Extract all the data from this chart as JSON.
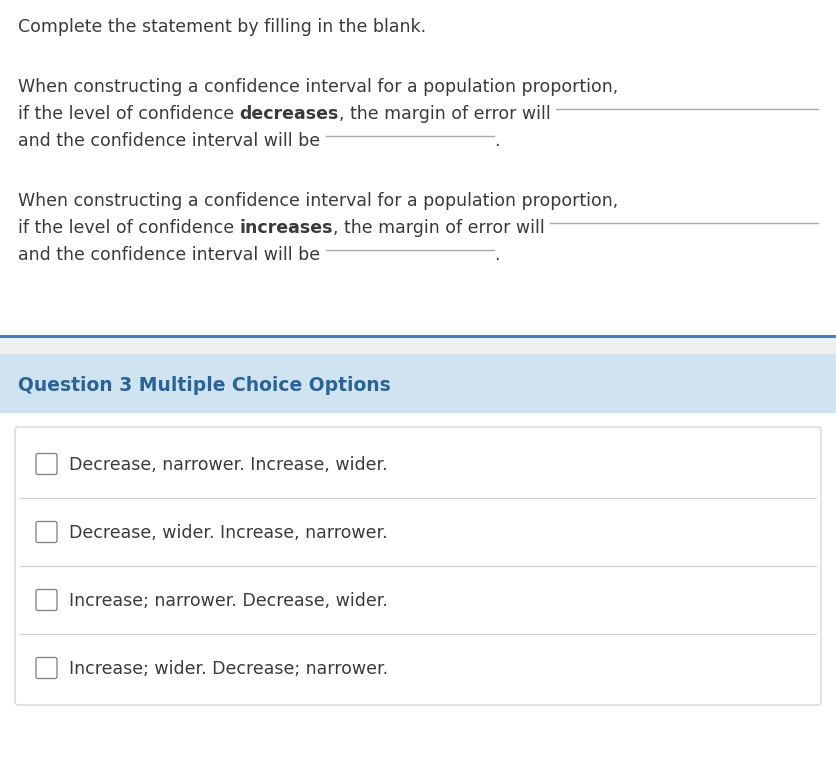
{
  "bg_color": "#ffffff",
  "top_text_color": "#3a3a3a",
  "header_bg_color": "#cfe3f0",
  "header_text_color": "#2a6496",
  "divider_color": "#4a7fb5",
  "option_bg_color": "#ffffff",
  "option_border_color": "#cccccc",
  "checkbox_color": "#888888",
  "option_text_color": "#3a3a3a",
  "instruction": "Complete the statement by filling in the blank.",
  "paragraph1_line1": "When constructing a confidence interval for a population proportion,",
  "paragraph1_line2_pre": "if the level of confidence ",
  "paragraph1_bold": "decreases",
  "paragraph1_line2_post": ", the margin of error will ",
  "paragraph1_line3_pre": "and the confidence interval will be ",
  "paragraph2_line1": "When constructing a confidence interval for a population proportion,",
  "paragraph2_line2_pre": "if the level of confidence ",
  "paragraph2_bold": "increases",
  "paragraph2_line2_post": ", the margin of error will ",
  "paragraph2_line3_pre": "and the confidence interval will be ",
  "section_header": "Question 3 Multiple Choice Options",
  "options": [
    "Decrease, narrower. Increase, wider.",
    "Decrease, wider. Increase, narrower.",
    "Increase; narrower. Decrease, wider.",
    "Increase; wider. Decrease; narrower."
  ],
  "underline_color": "#aaaaaa",
  "font_size_instruction": 12.5,
  "font_size_body": 12.5,
  "font_size_header": 13.5,
  "font_size_option": 12.5,
  "fig_width": 8.36,
  "fig_height": 7.62,
  "dpi": 100
}
